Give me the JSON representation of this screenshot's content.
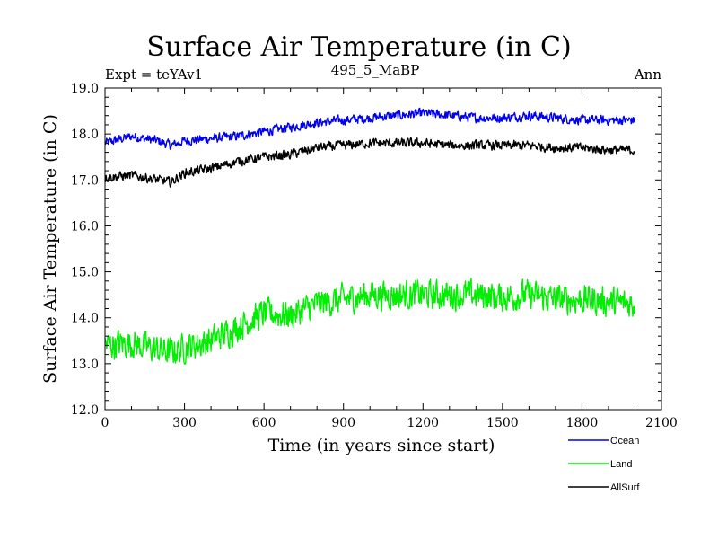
{
  "chart_data": {
    "type": "line",
    "title": "Surface Air Temperature (in C)",
    "subtitle_left": "Expt = teYAv1",
    "subtitle_center": "495_5_MaBP",
    "subtitle_right": "Ann",
    "xlabel": "Time (in years since start)",
    "ylabel": "Surface Air Temperature (in C)",
    "xlim": [
      0,
      2100
    ],
    "ylim": [
      12.0,
      19.0
    ],
    "xticks": [
      0,
      300,
      600,
      900,
      1200,
      1500,
      1800,
      2100
    ],
    "yticks": [
      12.0,
      13.0,
      14.0,
      15.0,
      16.0,
      17.0,
      18.0,
      19.0
    ],
    "ytick_labels": [
      "12.0",
      "13.0",
      "14.0",
      "15.0",
      "16.0",
      "17.0",
      "18.0",
      "19.0"
    ],
    "legend_position": "bottom-right, below plot",
    "series": [
      {
        "name": "Ocean",
        "color": "#0000ee",
        "x": [
          0,
          100,
          200,
          250,
          300,
          400,
          500,
          600,
          700,
          800,
          900,
          1000,
          1100,
          1200,
          1300,
          1400,
          1500,
          1600,
          1700,
          1800,
          1900,
          2000
        ],
        "values": [
          17.8,
          17.95,
          17.85,
          17.75,
          17.85,
          17.9,
          17.95,
          18.05,
          18.15,
          18.25,
          18.3,
          18.35,
          18.4,
          18.45,
          18.4,
          18.35,
          18.35,
          18.4,
          18.35,
          18.3,
          18.3,
          18.3
        ]
      },
      {
        "name": "Land",
        "color": "#00ee00",
        "x": [
          0,
          100,
          200,
          250,
          300,
          400,
          500,
          600,
          700,
          800,
          900,
          1000,
          1100,
          1200,
          1300,
          1400,
          1500,
          1600,
          1700,
          1800,
          1900,
          2000
        ],
        "values": [
          13.4,
          13.45,
          13.3,
          13.25,
          13.35,
          13.5,
          13.8,
          14.1,
          14.05,
          14.3,
          14.4,
          14.5,
          14.5,
          14.5,
          14.5,
          14.5,
          14.45,
          14.5,
          14.4,
          14.4,
          14.35,
          14.3
        ]
      },
      {
        "name": "AllSurf",
        "color": "#000000",
        "x": [
          0,
          100,
          200,
          250,
          300,
          400,
          500,
          600,
          700,
          800,
          900,
          1000,
          1100,
          1200,
          1300,
          1400,
          1500,
          1600,
          1700,
          1800,
          1900,
          2000
        ],
        "values": [
          17.05,
          17.1,
          17.0,
          16.95,
          17.15,
          17.25,
          17.4,
          17.5,
          17.55,
          17.7,
          17.75,
          17.8,
          17.8,
          17.8,
          17.75,
          17.75,
          17.75,
          17.75,
          17.7,
          17.7,
          17.65,
          17.65
        ]
      }
    ]
  }
}
